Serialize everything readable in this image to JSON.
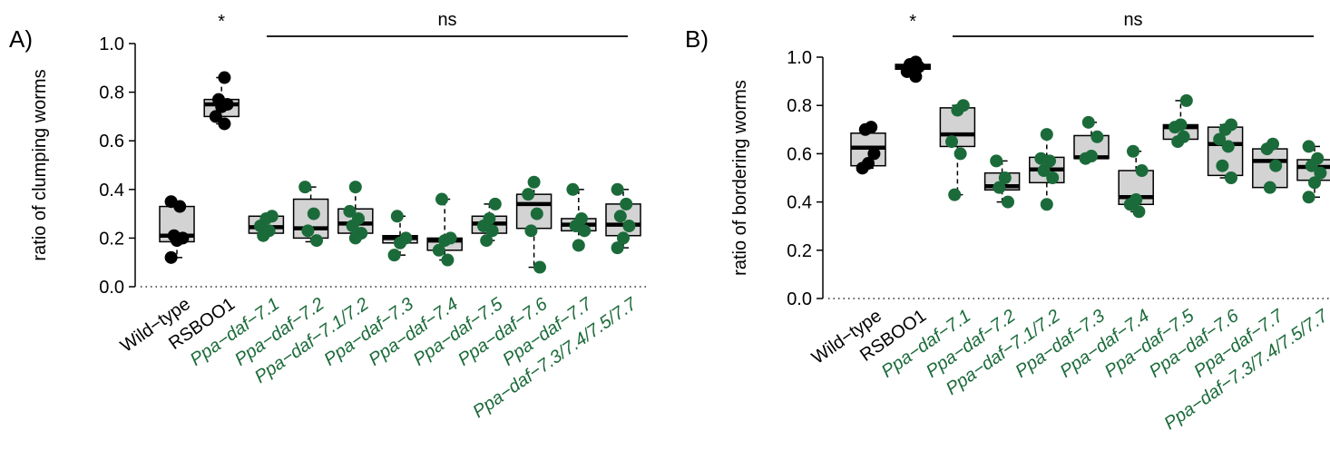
{
  "colors": {
    "control": "#000000",
    "mutant": "#1b6b3a",
    "box_fill": "#d3d3d3"
  },
  "chart_data": [
    {
      "type": "box",
      "panel_label": "A)",
      "ylabel": "ratio of clumping worms",
      "ylim": [
        0,
        1.0
      ],
      "yticks": [
        "0.0",
        "0.2",
        "0.4",
        "0.6",
        "0.8",
        "1.0"
      ],
      "categories": [
        {
          "label": "Wild−type",
          "italic": false,
          "group": "control"
        },
        {
          "label": "RSBOO1",
          "italic": false,
          "group": "control"
        },
        {
          "label": "Ppa−daf−7.1",
          "italic": true,
          "group": "mutant"
        },
        {
          "label": "Ppa−daf−7.2",
          "italic": true,
          "group": "mutant"
        },
        {
          "label": "Ppa−daf−7.1/7.2",
          "italic": true,
          "group": "mutant"
        },
        {
          "label": "Ppa−daf−7.3",
          "italic": true,
          "group": "mutant"
        },
        {
          "label": "Ppa−daf−7.4",
          "italic": true,
          "group": "mutant"
        },
        {
          "label": "Ppa−daf−7.5",
          "italic": true,
          "group": "mutant"
        },
        {
          "label": "Ppa−daf−7.6",
          "italic": true,
          "group": "mutant"
        },
        {
          "label": "Ppa−daf−7.7",
          "italic": true,
          "group": "mutant"
        },
        {
          "label": "Ppa−daf−7.3/7.4/7.5/7.7",
          "italic": true,
          "group": "mutant"
        }
      ],
      "boxes": [
        {
          "q1": 0.185,
          "median": 0.21,
          "q3": 0.33,
          "min": 0.12,
          "max": 0.35
        },
        {
          "q1": 0.7,
          "median": 0.75,
          "q3": 0.77,
          "min": 0.67,
          "max": 0.86
        },
        {
          "q1": 0.22,
          "median": 0.245,
          "q3": 0.29,
          "min": 0.21,
          "max": 0.29
        },
        {
          "q1": 0.2,
          "median": 0.24,
          "q3": 0.36,
          "min": 0.185,
          "max": 0.41
        },
        {
          "q1": 0.22,
          "median": 0.26,
          "q3": 0.32,
          "min": 0.2,
          "max": 0.41
        },
        {
          "q1": 0.18,
          "median": 0.2,
          "q3": 0.21,
          "min": 0.13,
          "max": 0.29
        },
        {
          "q1": 0.15,
          "median": 0.19,
          "q3": 0.2,
          "min": 0.11,
          "max": 0.36
        },
        {
          "q1": 0.22,
          "median": 0.26,
          "q3": 0.29,
          "min": 0.19,
          "max": 0.34
        },
        {
          "q1": 0.24,
          "median": 0.34,
          "q3": 0.38,
          "min": 0.08,
          "max": 0.43
        },
        {
          "q1": 0.23,
          "median": 0.255,
          "q3": 0.28,
          "min": 0.17,
          "max": 0.4
        },
        {
          "q1": 0.21,
          "median": 0.255,
          "q3": 0.34,
          "min": 0.16,
          "max": 0.4
        }
      ],
      "points": [
        [
          0.12,
          0.19,
          0.2,
          0.21,
          0.33,
          0.35
        ],
        [
          0.67,
          0.7,
          0.74,
          0.75,
          0.77,
          0.86
        ],
        [
          0.21,
          0.23,
          0.25,
          0.28,
          0.29
        ],
        [
          0.19,
          0.23,
          0.3,
          0.41
        ],
        [
          0.2,
          0.22,
          0.25,
          0.28,
          0.31,
          0.41
        ],
        [
          0.13,
          0.18,
          0.2,
          0.29
        ],
        [
          0.11,
          0.15,
          0.19,
          0.2,
          0.36
        ],
        [
          0.19,
          0.23,
          0.25,
          0.28,
          0.34
        ],
        [
          0.08,
          0.23,
          0.3,
          0.38,
          0.43
        ],
        [
          0.17,
          0.23,
          0.25,
          0.28,
          0.4
        ],
        [
          0.16,
          0.2,
          0.25,
          0.29,
          0.34,
          0.4
        ]
      ],
      "annotations": {
        "star_label": "*",
        "star_category": 1,
        "ns_label": "ns",
        "ns_from": 2,
        "ns_to": 10
      }
    },
    {
      "type": "box",
      "panel_label": "B)",
      "ylabel": "ratio of bordering worms",
      "ylim": [
        0,
        1.0
      ],
      "yticks": [
        "0.0",
        "0.2",
        "0.4",
        "0.6",
        "0.8",
        "1.0"
      ],
      "categories": [
        {
          "label": "Wild−type",
          "italic": false,
          "group": "control"
        },
        {
          "label": "RSBOO1",
          "italic": false,
          "group": "control"
        },
        {
          "label": "Ppa−daf−7.1",
          "italic": true,
          "group": "mutant"
        },
        {
          "label": "Ppa−daf−7.2",
          "italic": true,
          "group": "mutant"
        },
        {
          "label": "Ppa−daf−7.1/7.2",
          "italic": true,
          "group": "mutant"
        },
        {
          "label": "Ppa−daf−7.3",
          "italic": true,
          "group": "mutant"
        },
        {
          "label": "Ppa−daf−7.4",
          "italic": true,
          "group": "mutant"
        },
        {
          "label": "Ppa−daf−7.5",
          "italic": true,
          "group": "mutant"
        },
        {
          "label": "Ppa−daf−7.6",
          "italic": true,
          "group": "mutant"
        },
        {
          "label": "Ppa−daf−7.7",
          "italic": true,
          "group": "mutant"
        },
        {
          "label": "Ppa−daf−7.3/7.4/7.5/7.7",
          "italic": true,
          "group": "mutant"
        }
      ],
      "boxes": [
        {
          "q1": 0.55,
          "median": 0.625,
          "q3": 0.685,
          "min": 0.54,
          "max": 0.71
        },
        {
          "q1": 0.95,
          "median": 0.96,
          "q3": 0.97,
          "min": 0.92,
          "max": 0.98
        },
        {
          "q1": 0.63,
          "median": 0.68,
          "q3": 0.79,
          "min": 0.43,
          "max": 0.8
        },
        {
          "q1": 0.45,
          "median": 0.465,
          "q3": 0.52,
          "min": 0.4,
          "max": 0.57
        },
        {
          "q1": 0.48,
          "median": 0.535,
          "q3": 0.585,
          "min": 0.39,
          "max": 0.68
        },
        {
          "q1": 0.58,
          "median": 0.585,
          "q3": 0.675,
          "min": 0.58,
          "max": 0.73
        },
        {
          "q1": 0.39,
          "median": 0.42,
          "q3": 0.53,
          "min": 0.36,
          "max": 0.61
        },
        {
          "q1": 0.66,
          "median": 0.71,
          "q3": 0.72,
          "min": 0.65,
          "max": 0.82
        },
        {
          "q1": 0.51,
          "median": 0.64,
          "q3": 0.71,
          "min": 0.5,
          "max": 0.72
        },
        {
          "q1": 0.46,
          "median": 0.57,
          "q3": 0.62,
          "min": 0.46,
          "max": 0.64
        },
        {
          "q1": 0.49,
          "median": 0.545,
          "q3": 0.575,
          "min": 0.42,
          "max": 0.63
        }
      ],
      "points": [
        [
          0.54,
          0.56,
          0.6,
          0.7,
          0.71
        ],
        [
          0.92,
          0.94,
          0.95,
          0.96,
          0.97,
          0.98
        ],
        [
          0.43,
          0.6,
          0.65,
          0.78,
          0.8
        ],
        [
          0.4,
          0.46,
          0.5,
          0.57
        ],
        [
          0.39,
          0.5,
          0.53,
          0.57,
          0.58,
          0.68
        ],
        [
          0.58,
          0.59,
          0.67,
          0.73
        ],
        [
          0.36,
          0.39,
          0.41,
          0.53,
          0.61
        ],
        [
          0.65,
          0.67,
          0.71,
          0.72,
          0.82
        ],
        [
          0.5,
          0.55,
          0.63,
          0.66,
          0.7,
          0.72
        ],
        [
          0.46,
          0.55,
          0.62,
          0.64
        ],
        [
          0.42,
          0.48,
          0.52,
          0.55,
          0.58,
          0.63
        ]
      ],
      "annotations": {
        "star_label": "*",
        "star_category": 1,
        "ns_label": "ns",
        "ns_from": 2,
        "ns_to": 10
      }
    }
  ]
}
